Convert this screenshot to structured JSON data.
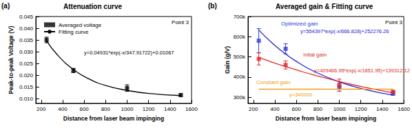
{
  "chart_data": [
    {
      "type": "scatter",
      "title": "Attenuation curve",
      "annotations": [
        "(a)",
        "Point 3"
      ],
      "x_label": "Distance from laser beam impinging",
      "y_label": "Peak-to-peak Voltage (V)",
      "xlim": [
        150,
        1600
      ],
      "xticks": [
        200,
        400,
        600,
        800,
        1000,
        1200,
        1400,
        1600
      ],
      "ylim": [
        0.008,
        0.045
      ],
      "yticks": [
        {
          "value": 0.01,
          "label": "0.010"
        },
        0.015,
        {
          "value": 0.02,
          "label": "0.020"
        },
        0.025,
        {
          "value": 0.03,
          "label": "0.030"
        },
        0.035,
        {
          "value": 0.04,
          "label": "0.040"
        },
        0.045
      ],
      "grid": false,
      "legend": "upper left",
      "series": [
        {
          "name": "Averaged voltage",
          "type": "scatter",
          "marker": "square",
          "color": "#000000",
          "x": [
            250,
            500,
            1000,
            1500
          ],
          "values": [
            0.035,
            0.022,
            0.0145,
            0.0115
          ],
          "errors": [
            0.0012,
            0.0009,
            0.0014,
            0.0005
          ]
        },
        {
          "name": "Fitting curve",
          "type": "line",
          "line_style": "solid",
          "color": "#000000",
          "x": [
            250,
            350,
            500,
            650,
            800,
            1000,
            1200,
            1500
          ],
          "values": [
            0.0347,
            0.0287,
            0.0224,
            0.0183,
            0.0156,
            0.0135,
            0.0122,
            0.0113
          ],
          "annotation": "y=0.04931*exp(-x/347.91722)+0.01067"
        }
      ]
    },
    {
      "type": "scatter",
      "title": "Averaged gain & Fitting curve",
      "annotations": [
        "(b)",
        "Point 3"
      ],
      "x_label": "Distance from laser beam impinging",
      "y_label": "Gain (g/V)",
      "xlim": [
        150,
        1600
      ],
      "xticks": [
        200,
        400,
        600,
        800,
        1000,
        1200,
        1400,
        1600
      ],
      "ylim": [
        270000,
        700000
      ],
      "yticks": [
        {
          "value": 300000,
          "label": "300k"
        },
        {
          "value": 400000,
          "label": "400k"
        },
        {
          "value": 500000,
          "label": "500k"
        },
        {
          "value": 600000,
          "label": "600k"
        },
        {
          "value": 700000,
          "label": "700k"
        }
      ],
      "grid": false,
      "series": [
        {
          "name": "Optimized gain",
          "type": "scatter",
          "marker": "square",
          "color": "#2a3ae0",
          "x": [
            250,
            500,
            1000,
            1500
          ],
          "values": [
            580000,
            540000,
            350000,
            320000
          ],
          "errors": [
            60000,
            25000,
            20000,
            10000
          ]
        },
        {
          "type": "line",
          "line_style": "solid",
          "color": "#1e22d0",
          "x": [
            250,
            375,
            500,
            625,
            750,
            1000,
            1250,
            1500
          ],
          "values": [
            633000,
            568300,
            514000,
            469500,
            432000,
            376000,
            337000,
            310700
          ],
          "annotation": "y=554397*exp(-x/666.828)+252276.26"
        },
        {
          "name": "Intial gain",
          "type": "scatter",
          "marker": "square",
          "color": "#e02828",
          "x": [
            250,
            500,
            1000,
            1500
          ],
          "values": [
            490000,
            460000,
            360000,
            325000
          ],
          "errors": [
            30000,
            20000,
            30000,
            10000
          ]
        },
        {
          "type": "line",
          "line_style": "solid",
          "color": "#e02828",
          "x": [
            250,
            375,
            500,
            625,
            750,
            1000,
            1250,
            1500
          ],
          "values": [
            497000,
            473700,
            451900,
            431500,
            412400,
            377900,
            347700,
            321500
          ],
          "annotation": "y=409466.95*exp(-x/1851.95)+139312.12"
        },
        {
          "name": "Constant gain",
          "type": "line",
          "line_style": "solid",
          "color": "#f0a020",
          "x": [
            250,
            1500
          ],
          "values": [
            340000,
            340000
          ],
          "annotation": "y=340000"
        }
      ]
    }
  ]
}
